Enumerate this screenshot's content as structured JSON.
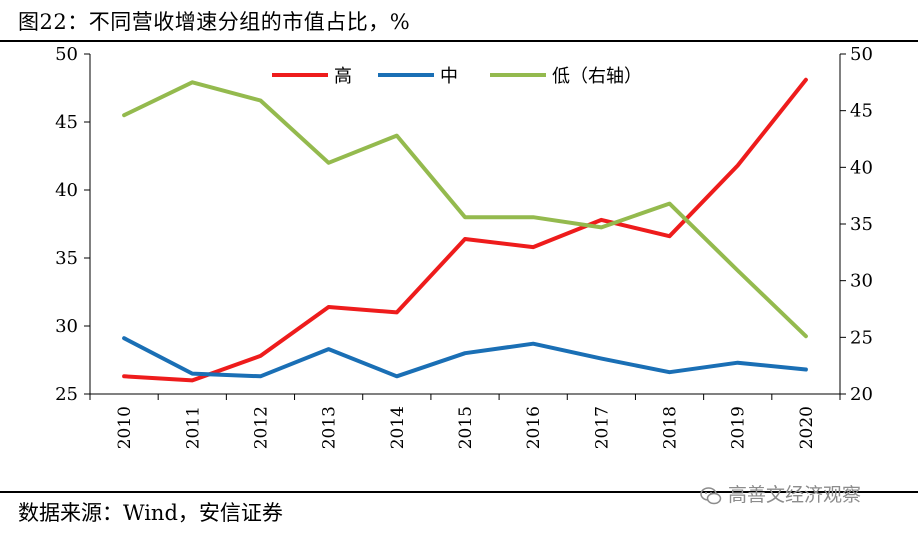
{
  "header": {
    "title": "图22：不同营收增速分组的市值占比，%"
  },
  "footer": {
    "source": "数据来源：Wind，安信证券"
  },
  "watermark": {
    "text": "高善文经济观察",
    "icon": "wechat-icon"
  },
  "chart_data": {
    "type": "line",
    "x": [
      "2010",
      "2011",
      "2012",
      "2013",
      "2014",
      "2015",
      "2016",
      "2017",
      "2018",
      "2019",
      "2020"
    ],
    "y_left": {
      "min": 25,
      "max": 50,
      "ticks": [
        25,
        30,
        35,
        40,
        45,
        50
      ]
    },
    "y_right": {
      "min": 20,
      "max": 50,
      "ticks": [
        20,
        25,
        30,
        35,
        40,
        45,
        50
      ]
    },
    "legend_position": "top-center",
    "grid": false,
    "series": [
      {
        "name": "高",
        "axis": "left",
        "color": "#ee1c1c",
        "values": [
          26.3,
          26.0,
          27.8,
          31.4,
          31.0,
          36.4,
          35.8,
          37.8,
          36.6,
          41.8,
          48.1
        ]
      },
      {
        "name": "中",
        "axis": "left",
        "color": "#1a6fb5",
        "values": [
          29.1,
          26.5,
          26.3,
          28.3,
          26.3,
          28.0,
          28.7,
          27.6,
          26.6,
          27.3,
          26.8
        ]
      },
      {
        "name": "低（右轴）",
        "axis": "right",
        "color": "#94ba4e",
        "values": [
          44.6,
          47.5,
          45.9,
          40.4,
          42.8,
          35.6,
          35.6,
          34.7,
          36.8,
          30.9,
          25.1
        ]
      }
    ]
  }
}
